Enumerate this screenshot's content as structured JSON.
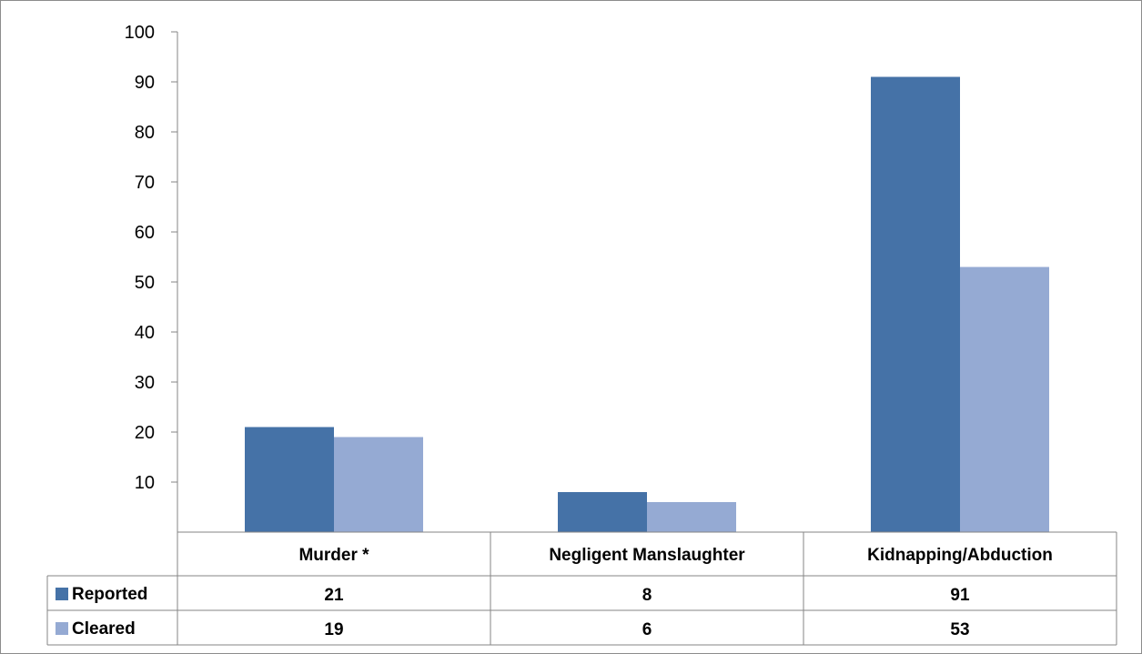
{
  "chart_data": {
    "type": "bar",
    "title": "",
    "xlabel": "",
    "ylabel": "",
    "ylim": [
      0,
      100
    ],
    "yticks": [
      10,
      20,
      30,
      40,
      50,
      60,
      70,
      80,
      90,
      100
    ],
    "categories": [
      "Murder *",
      "Negligent Manslaughter",
      "Kidnapping/Abduction"
    ],
    "series": [
      {
        "name": "Reported",
        "color": "#4572a7",
        "values": [
          21,
          8,
          91
        ],
        "labels": [
          "21",
          "8",
          "91"
        ]
      },
      {
        "name": "Cleared",
        "color": "#95aad3",
        "values": [
          19,
          6,
          53
        ],
        "labels": [
          "19",
          "6",
          "53"
        ]
      }
    ],
    "legend": "data-table",
    "grid": false
  }
}
